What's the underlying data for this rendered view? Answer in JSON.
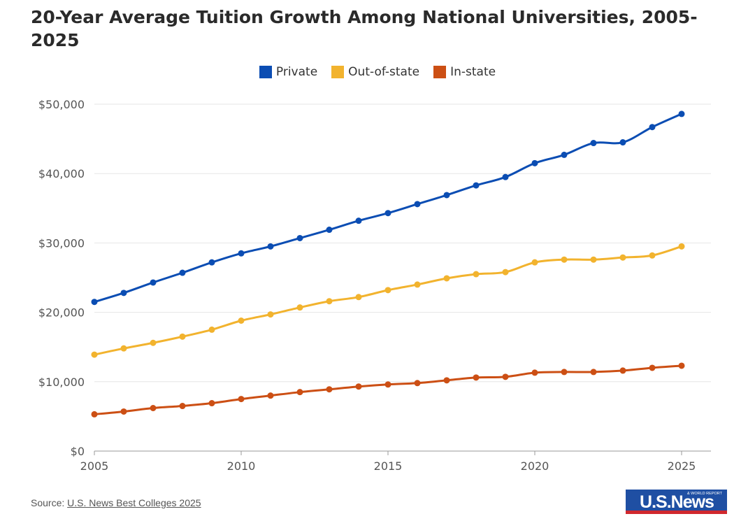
{
  "title": "20-Year Average Tuition Growth Among National Universities, 2005-2025",
  "source": {
    "prefix": "Source: ",
    "link_text": "U.S. News Best Colleges 2025"
  },
  "logo": {
    "text": "U.S.News",
    "tag": "& WORLD REPORT"
  },
  "chart_data": {
    "type": "line",
    "title": "20-Year Average Tuition Growth Among National Universities, 2005-2025",
    "xlabel": "",
    "ylabel": "",
    "x": [
      2005,
      2006,
      2007,
      2008,
      2009,
      2010,
      2011,
      2012,
      2013,
      2014,
      2015,
      2016,
      2017,
      2018,
      2019,
      2020,
      2021,
      2022,
      2023,
      2024,
      2025
    ],
    "xlim": [
      2005,
      2026
    ],
    "ylim": [
      0,
      50000
    ],
    "x_ticks": [
      2005,
      2010,
      2015,
      2020,
      2025
    ],
    "y_ticks": [
      0,
      10000,
      20000,
      30000,
      40000,
      50000
    ],
    "y_tick_labels": [
      "$0",
      "$10,000",
      "$20,000",
      "$30,000",
      "$40,000",
      "$50,000"
    ],
    "grid": true,
    "legend_position": "top-center",
    "series": [
      {
        "name": "Private",
        "color": "#0b4db3",
        "values": [
          21500,
          22800,
          24300,
          25700,
          27200,
          28500,
          29500,
          30700,
          31900,
          33200,
          34300,
          35600,
          36900,
          38300,
          39500,
          41500,
          42700,
          44400,
          44500,
          46700,
          48600
        ]
      },
      {
        "name": "Out-of-state",
        "color": "#f2b32e",
        "values": [
          13900,
          14800,
          15600,
          16500,
          17500,
          18800,
          19700,
          20700,
          21600,
          22200,
          23200,
          24000,
          24900,
          25500,
          25800,
          27200,
          27600,
          27600,
          27900,
          28200,
          29500
        ]
      },
      {
        "name": "In-state",
        "color": "#cc4f14",
        "values": [
          5300,
          5700,
          6200,
          6500,
          6900,
          7500,
          8000,
          8500,
          8900,
          9300,
          9600,
          9800,
          10200,
          10600,
          10700,
          11300,
          11400,
          11400,
          11600,
          12000,
          12300
        ]
      }
    ]
  }
}
